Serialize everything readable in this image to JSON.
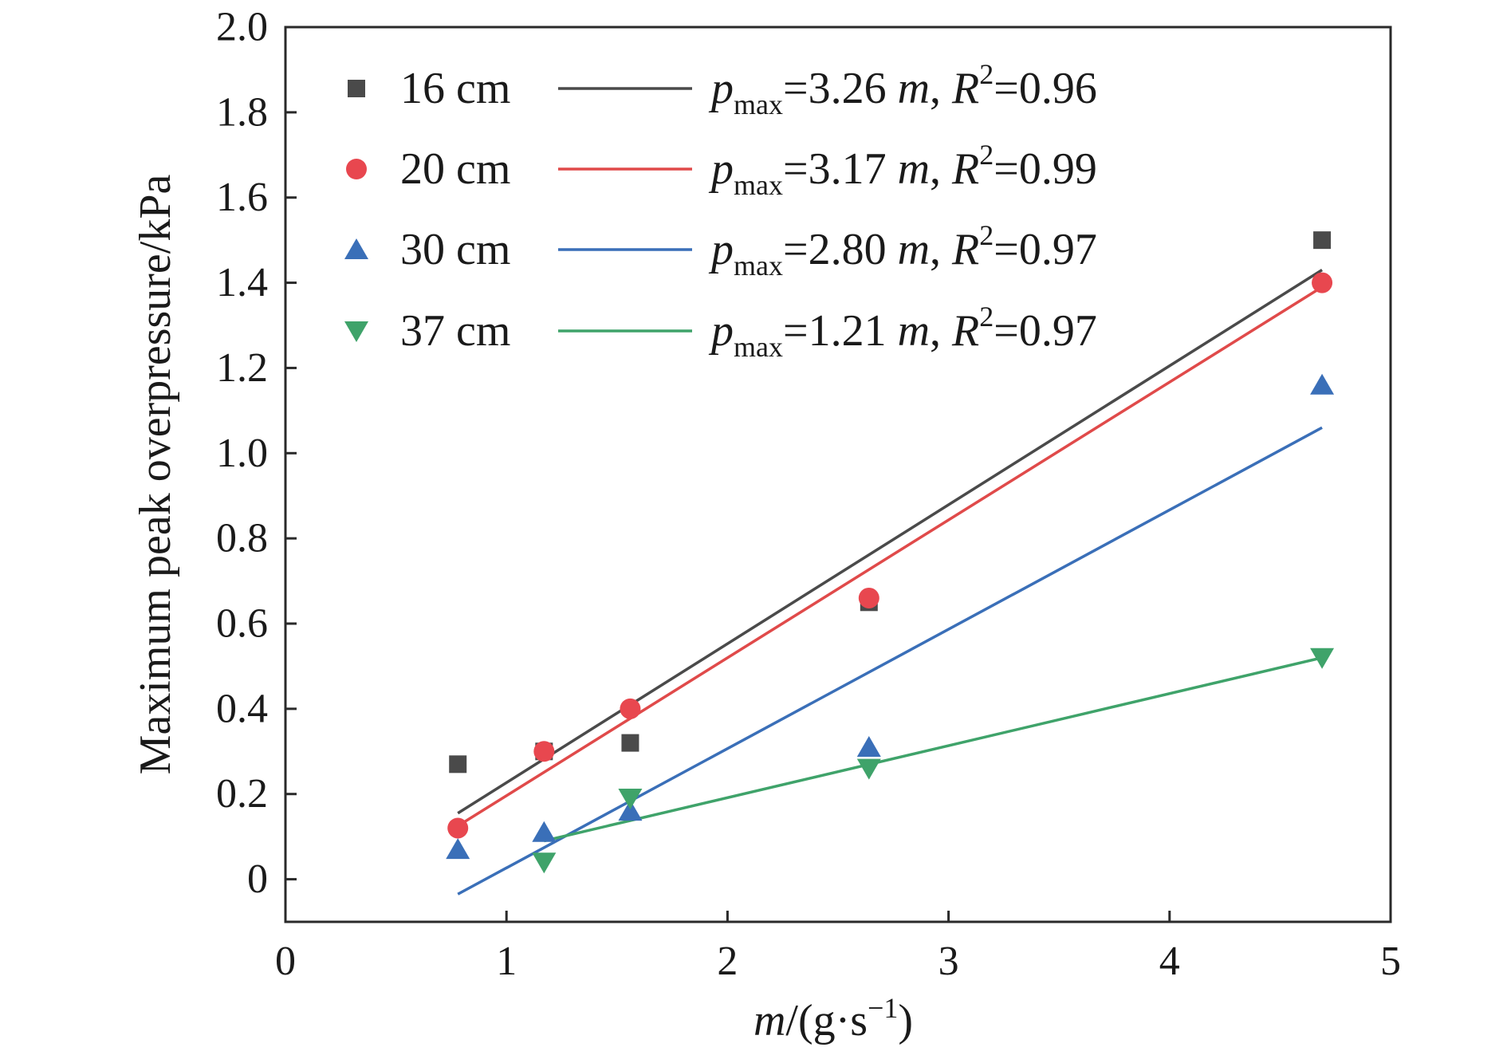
{
  "chart_data": {
    "type": "scatter",
    "title": "",
    "xlabel": {
      "var": "m",
      "unit_open": "/(g·s",
      "unit_exp": "−1",
      "unit_close": ")"
    },
    "ylabel": "Maximum peak overpressure/kPa",
    "xlim": [
      0,
      5
    ],
    "ylim": [
      -0.1,
      2.0
    ],
    "x_ticks": [
      0,
      1,
      2,
      3,
      4,
      5
    ],
    "x_tick_labels": [
      "0",
      "1",
      "2",
      "3",
      "4",
      "5"
    ],
    "y_ticks": [
      0,
      0.2,
      0.4,
      0.6,
      0.8,
      1.0,
      1.2,
      1.4,
      1.6,
      1.8,
      2.0
    ],
    "y_tick_labels": [
      "0",
      "0.2",
      "0.4",
      "0.6",
      "0.8",
      "1.0",
      "1.2",
      "1.4",
      "1.6",
      "1.8",
      "2.0"
    ],
    "grid": false,
    "legend_position": "top-left",
    "series": [
      {
        "name": "16 cm",
        "marker": "square",
        "color": "#4a4a4a",
        "line_color": "#4a4a4a",
        "x": [
          0.78,
          1.17,
          1.56,
          2.64,
          4.69
        ],
        "y": [
          0.27,
          0.3,
          0.32,
          0.65,
          1.5
        ],
        "fit": {
          "var": "p",
          "sub": "max",
          "coef": "=3.26 ",
          "mvar": "m",
          "r": "R",
          "rsup": "2",
          "rval": "=0.96",
          "x": [
            0.78,
            4.69
          ],
          "y": [
            0.155,
            1.43
          ]
        }
      },
      {
        "name": "20 cm",
        "marker": "circle",
        "color": "#e8474f",
        "line_color": "#e04a4a",
        "x": [
          0.78,
          1.17,
          1.56,
          2.64,
          4.69
        ],
        "y": [
          0.12,
          0.3,
          0.4,
          0.66,
          1.4
        ],
        "fit": {
          "var": "p",
          "sub": "max",
          "coef": "=3.17 ",
          "mvar": "m",
          "r": "R",
          "rsup": "2",
          "rval": "=0.99",
          "x": [
            0.78,
            4.69
          ],
          "y": [
            0.125,
            1.39
          ]
        }
      },
      {
        "name": "30 cm",
        "marker": "triangle-up",
        "color": "#3a6fb8",
        "line_color": "#3a6fb8",
        "x": [
          0.78,
          1.17,
          1.56,
          2.64,
          4.69
        ],
        "y": [
          0.07,
          0.11,
          0.16,
          0.31,
          1.16
        ],
        "fit": {
          "var": "p",
          "sub": "max",
          "coef": "=2.80 ",
          "mvar": "m",
          "r": "R",
          "rsup": "2",
          "rval": "=0.97",
          "x": [
            0.78,
            4.69
          ],
          "y": [
            -0.035,
            1.06
          ]
        }
      },
      {
        "name": "37 cm",
        "marker": "triangle-down",
        "color": "#3fa36a",
        "line_color": "#3fa36a",
        "x": [
          1.17,
          1.56,
          2.64,
          4.69
        ],
        "y": [
          0.04,
          0.19,
          0.26,
          0.52
        ],
        "fit": {
          "var": "p",
          "sub": "max",
          "coef": "=1.21 ",
          "mvar": "m",
          "r": "R",
          "rsup": "2",
          "rval": "=0.97",
          "x": [
            1.17,
            4.69
          ],
          "y": [
            0.09,
            0.52
          ]
        }
      }
    ]
  }
}
